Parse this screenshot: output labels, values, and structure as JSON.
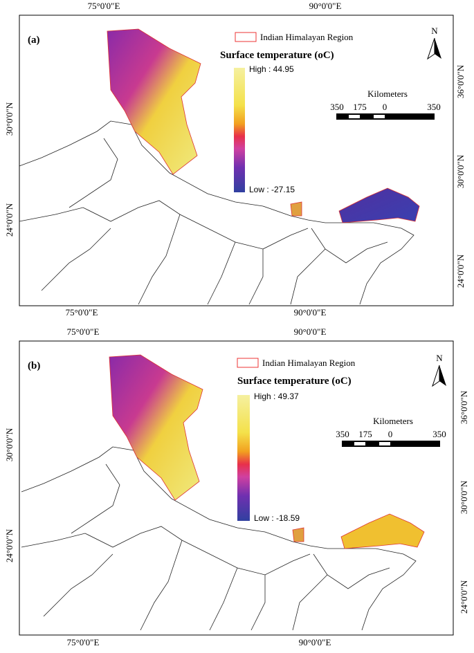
{
  "panels": [
    {
      "label": "(a)",
      "top_labels": [
        "75°0'0\"E",
        "90°0'0\"E"
      ],
      "bottom_labels": [
        "75°0'0\"E",
        "90°0'0\"E"
      ],
      "left_labels": [
        "30°0'0\"N",
        "24°0'0\"N"
      ],
      "right_labels": [
        "36°0'0\"N",
        "30°0'0\"N",
        "24°0'0\"N"
      ],
      "legend": {
        "region": "Indian Himalayan Region",
        "title": "Surface temperature (oC)",
        "high": "High : 44.95",
        "low": "Low : -27.15"
      },
      "scale": {
        "title": "Kilometers",
        "ticks": [
          "350",
          "175",
          "0",
          "350"
        ]
      },
      "north": "N"
    },
    {
      "label": "(b)",
      "top_labels": [
        "75°0'0\"E",
        "90°0'0\"E"
      ],
      "bottom_labels": [
        "75°0'0\"E",
        "90°0'0\"E"
      ],
      "left_labels": [
        "30°0'0\"N",
        "24°0'0\"N"
      ],
      "right_labels": [
        "36°0'0\"N",
        "30°0'0\"N",
        "24°0'0\"N"
      ],
      "legend": {
        "region": "Indian Himalayan Region",
        "title": "Surface temperature (oC)",
        "high": "High : 49.37",
        "low": "Low : -18.59"
      },
      "scale": {
        "title": "Kilometers",
        "ticks": [
          "350",
          "175",
          "0",
          "350"
        ]
      },
      "north": "N"
    }
  ]
}
